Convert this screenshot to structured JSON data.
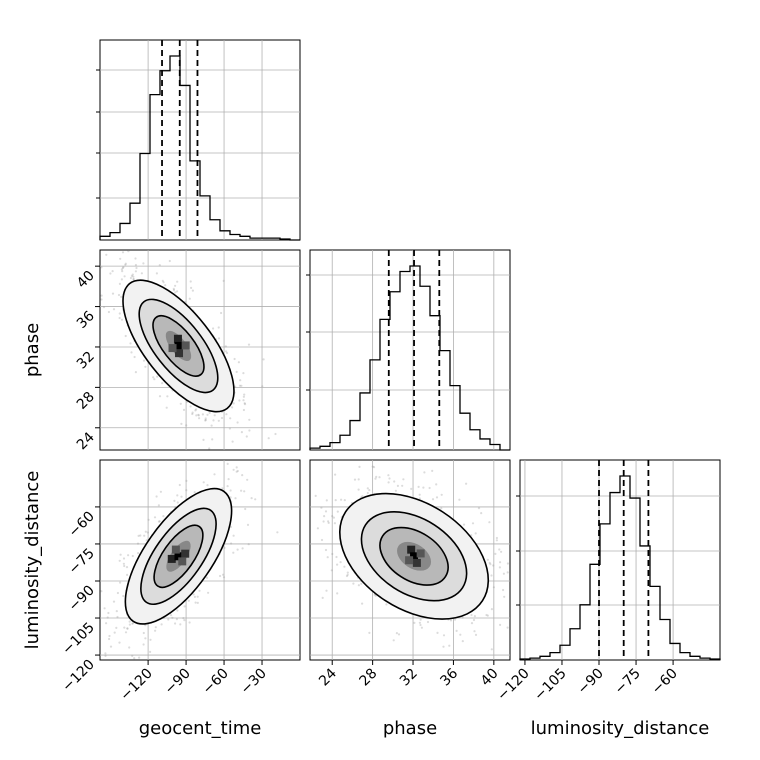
{
  "chart_data": {
    "type": "corner",
    "parameters": [
      "geocent_time",
      "phase",
      "luminosity_distance"
    ],
    "labels": {
      "x": [
        "geocent_time",
        "phase",
        "luminosity_distance"
      ],
      "y_row1": "phase",
      "y_row2": "luminosity_distance"
    },
    "ranges": {
      "geocent_time": [
        -158,
        0
      ],
      "phase": [
        21.8,
        41.6
      ],
      "luminosity_distance": [
        -122,
        -41
      ]
    },
    "ticks": {
      "geocent_time": [
        -120,
        -90,
        -60,
        -30
      ],
      "phase_x": [
        24,
        28,
        32,
        36,
        40
      ],
      "phase_y": [
        24,
        28,
        32,
        36,
        40
      ],
      "luminosity_distance_x": [
        -120,
        -105,
        -90,
        -75,
        -60
      ],
      "luminosity_distance_y": [
        -120,
        -105,
        -90,
        -75,
        -60
      ]
    },
    "quantiles": {
      "geocent_time": [
        -109,
        -95,
        -81
      ],
      "phase": [
        29.6,
        32.1,
        34.6
      ],
      "luminosity_distance": [
        -90,
        -80,
        -70
      ]
    },
    "histograms": {
      "geocent_time": [
        0.02,
        0.04,
        0.09,
        0.2,
        0.47,
        0.79,
        0.92,
        1.0,
        0.84,
        0.43,
        0.24,
        0.11,
        0.05,
        0.03,
        0.02,
        0.01,
        0.01,
        0.01,
        0.005,
        0.0
      ],
      "phase": [
        0.01,
        0.02,
        0.04,
        0.08,
        0.16,
        0.31,
        0.49,
        0.71,
        0.86,
        0.97,
        1.0,
        0.89,
        0.73,
        0.54,
        0.35,
        0.2,
        0.11,
        0.06,
        0.03,
        0.0
      ],
      "luminosity_distance": [
        0.005,
        0.01,
        0.02,
        0.04,
        0.08,
        0.17,
        0.3,
        0.52,
        0.74,
        0.91,
        1.0,
        0.88,
        0.62,
        0.4,
        0.22,
        0.09,
        0.04,
        0.02,
        0.01,
        0.005
      ]
    },
    "joint_centers": {
      "geocent_time_vs_phase": {
        "x": -96,
        "y": 32.1
      },
      "geocent_time_vs_luminosity_distance": {
        "x": -96,
        "y": -80
      },
      "phase_vs_luminosity_distance": {
        "x": 32.1,
        "y": -80
      }
    },
    "grid": true
  }
}
